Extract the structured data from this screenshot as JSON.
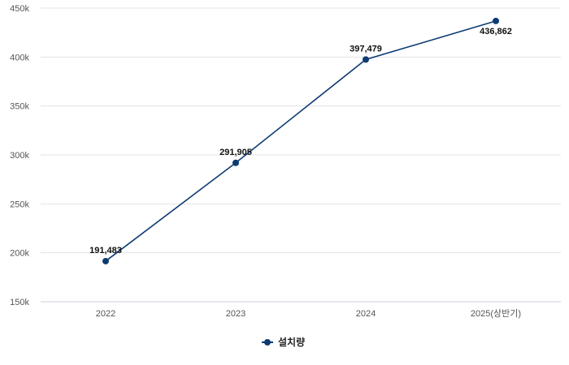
{
  "chart_data": {
    "type": "line",
    "title": "",
    "xlabel": "",
    "ylabel": "",
    "categories": [
      "2022",
      "2023",
      "2024",
      "2025(상반기)"
    ],
    "series": [
      {
        "name": "설치량",
        "values": [
          191483,
          291905,
          397479,
          436862
        ],
        "color": "#0d3b73"
      }
    ],
    "data_labels": [
      "191,483",
      "291,905",
      "397,479",
      "436,862"
    ],
    "y_ticks": [
      "150k",
      "200k",
      "250k",
      "300k",
      "350k",
      "400k",
      "450k"
    ],
    "ylim": [
      150000,
      450000
    ],
    "grid": true,
    "legend_position": "bottom"
  },
  "legend": {
    "label": "설치량"
  }
}
